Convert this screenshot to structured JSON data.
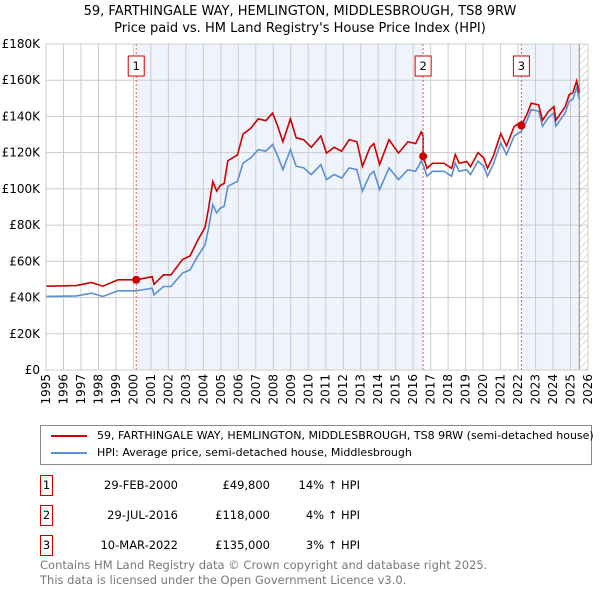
{
  "title": "59, FARTHINGALE WAY, HEMLINGTON, MIDDLESBROUGH, TS8 9RW",
  "subtitle": "Price paid vs. HM Land Registry's House Price Index (HPI)",
  "chart_data": {
    "type": "line",
    "title": "59, FARTHINGALE WAY, HEMLINGTON, MIDDLESBROUGH, TS8 9RW",
    "subtitle": "Price paid vs. HM Land Registry's House Price Index (HPI)",
    "xlim": [
      1995,
      2026
    ],
    "ylim": [
      0,
      180000
    ],
    "x_ticks": [
      "1995",
      "1996",
      "1997",
      "1998",
      "1999",
      "2000",
      "2001",
      "2002",
      "2003",
      "2004",
      "2005",
      "2006",
      "2007",
      "2008",
      "2009",
      "2010",
      "2011",
      "2012",
      "2013",
      "2014",
      "2015",
      "2016",
      "2017",
      "2018",
      "2019",
      "2020",
      "2021",
      "2022",
      "2023",
      "2024",
      "2025",
      "2026"
    ],
    "y_ticks": [
      {
        "v": 0,
        "label": "£0"
      },
      {
        "v": 20000,
        "label": "£20K"
      },
      {
        "v": 40000,
        "label": "£40K"
      },
      {
        "v": 60000,
        "label": "£60K"
      },
      {
        "v": 80000,
        "label": "£80K"
      },
      {
        "v": 100000,
        "label": "£100K"
      },
      {
        "v": 120000,
        "label": "£120K"
      },
      {
        "v": 140000,
        "label": "£140K"
      },
      {
        "v": 160000,
        "label": "£160K"
      },
      {
        "v": 180000,
        "label": "£180K"
      }
    ],
    "grid": true,
    "data_end": 2025.5,
    "colors": {
      "price": "#cc0000",
      "hpi": "#5b8fd4",
      "shade": "#eef3fc"
    },
    "hpi": {
      "name": "HPI: Average price, semi-detached house, Middlesbrough",
      "x": [
        1995.0,
        1996.73,
        1997.6,
        1998.25,
        1999.12,
        2000.03,
        2000.16,
        2001.07,
        2001.18,
        2001.72,
        2002.15,
        2002.8,
        2003.24,
        2003.67,
        2004.1,
        2004.28,
        2004.54,
        2004.76,
        2004.97,
        2005.19,
        2005.4,
        2005.95,
        2006.27,
        2006.71,
        2007.14,
        2007.57,
        2007.96,
        2008.22,
        2008.55,
        2008.98,
        2009.31,
        2009.74,
        2010.17,
        2010.72,
        2011.04,
        2011.48,
        2011.91,
        2012.34,
        2012.78,
        2013.1,
        2013.53,
        2013.75,
        2014.08,
        2014.62,
        2015.16,
        2015.7,
        2016.14,
        2016.46,
        2016.57,
        2016.79,
        2017.11,
        2017.76,
        2018.2,
        2018.41,
        2018.63,
        2019.06,
        2019.28,
        2019.71,
        2020.04,
        2020.25,
        2020.58,
        2021.01,
        2021.34,
        2021.77,
        2022.19,
        2022.53,
        2022.75,
        2023.18,
        2023.4,
        2023.72,
        2024.05,
        2024.16,
        2024.7,
        2024.92,
        2025.13,
        2025.35,
        2025.5
      ],
      "y": [
        40600,
        40900,
        42400,
        40600,
        43700,
        43700,
        43700,
        45200,
        41500,
        46100,
        46100,
        53500,
        55300,
        62700,
        69200,
        77500,
        91300,
        86700,
        89400,
        90400,
        101400,
        104200,
        114300,
        117100,
        121700,
        120800,
        124500,
        118900,
        110600,
        121700,
        112500,
        111600,
        107900,
        113400,
        105100,
        107900,
        106000,
        111600,
        110600,
        98700,
        107900,
        109700,
        99600,
        111600,
        105100,
        110600,
        109700,
        115300,
        113400,
        107000,
        109700,
        109700,
        107000,
        114300,
        109700,
        110600,
        107900,
        115300,
        112500,
        107000,
        113400,
        125400,
        118900,
        129100,
        131800,
        138300,
        143800,
        142900,
        134600,
        139200,
        142000,
        134600,
        142000,
        148400,
        149400,
        155800,
        149400
      ]
    },
    "price": {
      "name": "59, FARTHINGALE WAY, HEMLINGTON, MIDDLESBROUGH, TS8 9RW (semi-detached house)",
      "method": "HPI-indexed from each sale"
    },
    "sales": [
      {
        "n": "1",
        "x": 2000.16,
        "date": "29-FEB-2000",
        "price": 49800,
        "price_label": "£49,800",
        "pct": "14% ↑ HPI"
      },
      {
        "n": "2",
        "x": 2016.57,
        "date": "29-JUL-2016",
        "price": 118000,
        "price_label": "£118,000",
        "pct": "4% ↑ HPI"
      },
      {
        "n": "3",
        "x": 2022.19,
        "date": "10-MAR-2022",
        "price": 135000,
        "price_label": "£135,000",
        "pct": "3% ↑ HPI"
      }
    ]
  },
  "legend": {
    "price": "59, FARTHINGALE WAY, HEMLINGTON, MIDDLESBROUGH, TS8 9RW (semi-detached house)",
    "hpi": "HPI: Average price, semi-detached house, Middlesbrough"
  },
  "footer": {
    "line1": "Contains HM Land Registry data © Crown copyright and database right 2025.",
    "line2": "This data is licensed under the Open Government Licence v3.0."
  }
}
